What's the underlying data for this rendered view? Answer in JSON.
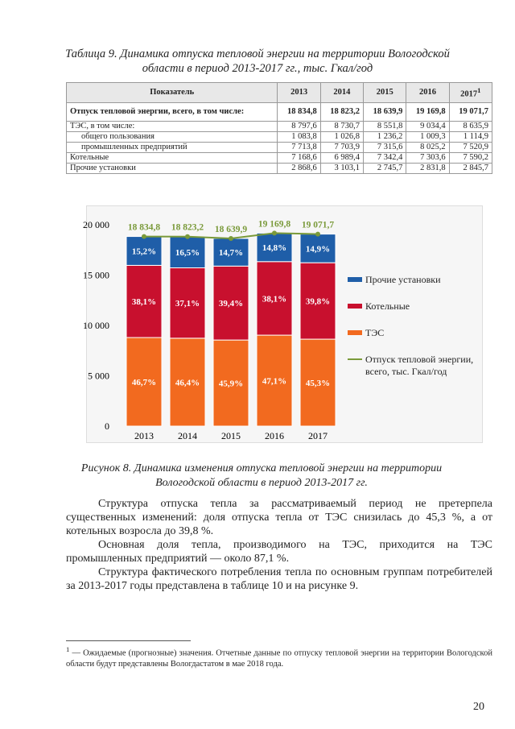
{
  "table_caption": "Таблица 9. Динамика отпуска тепловой энергии на территории Вологодской области в период 2013-2017 гг., тыс. Гкал/год",
  "table": {
    "header": [
      "Показатель",
      "2013",
      "2014",
      "2015",
      "2016",
      "2017"
    ],
    "header_footnote_mark": "1",
    "rows": [
      [
        "Отпуск тепловой энергии, всего, в том числе:",
        "18 834,8",
        "18 823,2",
        "18 639,9",
        "19 169,8",
        "19 071,7"
      ],
      [
        "ТЭС, в том числе:",
        "8 797,6",
        "8 730,7",
        "8 551,8",
        "9 034,4",
        "8 635,9"
      ],
      [
        "общего пользования",
        "1 083,8",
        "1 026,8",
        "1 236,2",
        "1 009,3",
        "1 114,9"
      ],
      [
        "промышленных предприятий",
        "7 713,8",
        "7 703,9",
        "7 315,6",
        "8 025,2",
        "7 520,9"
      ],
      [
        "Котельные",
        "7 168,6",
        "6 989,4",
        "7 342,4",
        "7 303,6",
        "7 590,2"
      ],
      [
        "Прочие установки",
        "2 868,6",
        "3 103,1",
        "2 745,7",
        "2 831,8",
        "2 845,7"
      ]
    ]
  },
  "chart_data": {
    "type": "stacked_bar_line",
    "categories": [
      "2013",
      "2014",
      "2015",
      "2016",
      "2017"
    ],
    "ylim": [
      0,
      20000
    ],
    "yticks": [
      0,
      {
        "value": 5000,
        "label": "5 000"
      },
      {
        "value": 10000,
        "label": "10 000"
      },
      {
        "value": 15000,
        "label": "15 000"
      },
      {
        "value": 20000,
        "label": "20 000"
      }
    ],
    "grid": false,
    "series": [
      {
        "name": "ТЭС",
        "color": "#f26a1f",
        "values": [
          8797.6,
          8730.7,
          8551.8,
          9034.4,
          8635.9
        ],
        "share_labels": [
          "46,7%",
          "46,4%",
          "45,9%",
          "47,1%",
          "45,3%"
        ]
      },
      {
        "name": "Котельные",
        "color": "#c8102e",
        "values": [
          7168.6,
          6989.4,
          7342.4,
          7303.6,
          7590.2
        ],
        "share_labels": [
          "38,1%",
          "37,1%",
          "39,4%",
          "38,1%",
          "39,8%"
        ]
      },
      {
        "name": "Прочие установки",
        "color": "#1f5ea8",
        "values": [
          2868.6,
          3103.1,
          2745.7,
          2831.8,
          2845.7
        ],
        "share_labels": [
          "15,2%",
          "16,5%",
          "14,7%",
          "14,8%",
          "14,9%"
        ]
      }
    ],
    "line": {
      "name": "Отпуск тепловой энергии, всего, тыс. Гкал/год",
      "color": "#7a9a3a",
      "values": [
        18834.8,
        18823.2,
        18639.9,
        19169.8,
        19071.7
      ],
      "value_labels": [
        "18 834,8",
        "18 823,2",
        "18 639,9",
        "19 169,8",
        "19 071,7"
      ]
    },
    "legend_order": [
      2,
      1,
      0
    ]
  },
  "figure_caption": "Рисунок 8. Динамика изменения отпуска тепловой энергии на территории Вологодской области в период 2013-2017 гг.",
  "paragraphs": [
    "Структура отпуска тепла за рассматриваемый период не претерпела существенных изменений: доля отпуска тепла от ТЭС снизилась до 45,3 %, а от котельных возросла до 39,8 %.",
    "Основная доля тепла, производимого на ТЭС, приходится на ТЭС промышленных предприятий — около 87,1 %.",
    "Структура фактического потребления тепла по основным группам потребителей за 2013-2017 годы представлена в таблице 10 и на рисунке 9."
  ],
  "footnote": {
    "mark": "1",
    "text": "— Ожидаемые (прогнозные) значения. Отчетные данные по отпуску тепловой энергии на территории Вологодской области будут представлены Вологдастатом в мае 2018 года."
  },
  "page_number": "20"
}
